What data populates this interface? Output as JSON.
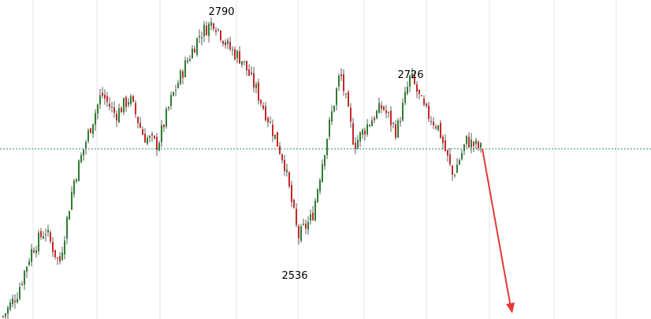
{
  "chart_data": {
    "type": "candlestick",
    "title": "",
    "xlabel": "",
    "ylabel": "",
    "ylim": [
      2440,
      2815
    ],
    "grid": {
      "vertical": true,
      "horizontal": false
    },
    "reference_line": {
      "value": 2640,
      "style": "dotted",
      "color": "#2e8b57"
    },
    "annotations": [
      {
        "text": "2790",
        "value": 2790,
        "kind": "high"
      },
      {
        "text": "2536",
        "value": 2536,
        "kind": "low"
      },
      {
        "text": "2726",
        "value": 2726,
        "kind": "high"
      }
    ],
    "path_points": [
      2443,
      2470,
      2520,
      2545,
      2505,
      2600,
      2655,
      2705,
      2680,
      2700,
      2655,
      2645,
      2700,
      2740,
      2775,
      2790,
      2760,
      2745,
      2710,
      2670,
      2625,
      2536,
      2560,
      2650,
      2730,
      2645,
      2670,
      2690,
      2660,
      2726,
      2685,
      2665,
      2608,
      2650,
      2640
    ],
    "forecast": {
      "direction": "down",
      "color": "#e53935"
    },
    "colors": {
      "up": "#2e7d32",
      "down": "#c62828",
      "wick": "#333333",
      "grid": "#e6e6e6"
    }
  }
}
